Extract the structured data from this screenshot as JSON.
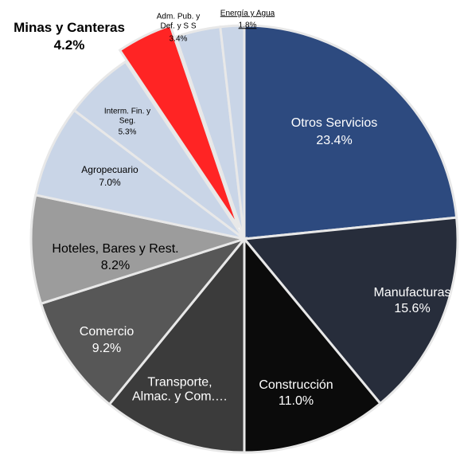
{
  "chart_data": {
    "type": "pie",
    "categories": [
      "Otros Servicios",
      "Manufacturas",
      "Construcción",
      "Transporte,\nAlmac. y Com.…",
      "Comercio",
      "Hoteles, Bares y Rest.",
      "Agropecuario",
      "Interm. Fin. y\nSeg.",
      "Minas y Canteras",
      "Adm. Pub. y\nDef. y S S",
      "Energía y Agua"
    ],
    "values": [
      23.4,
      15.6,
      11.0,
      10.9,
      9.2,
      8.2,
      7.0,
      5.3,
      4.2,
      3.4,
      1.8
    ],
    "value_labels": [
      "23.4%",
      "15.6%",
      "11.0%",
      null,
      "9.2%",
      "8.2%",
      "7.0%",
      "5.3%",
      "4.2%",
      "3.4%",
      "1.8%"
    ],
    "colors": [
      "#2d4a7f",
      "#272d3b",
      "#0b0b0b",
      "#3b3b3b",
      "#575757",
      "#9c9c9c",
      "#c9d5e7",
      "#c9d5e7",
      "#ff2424",
      "#c9d5e7",
      "#c9d5e7"
    ]
  }
}
